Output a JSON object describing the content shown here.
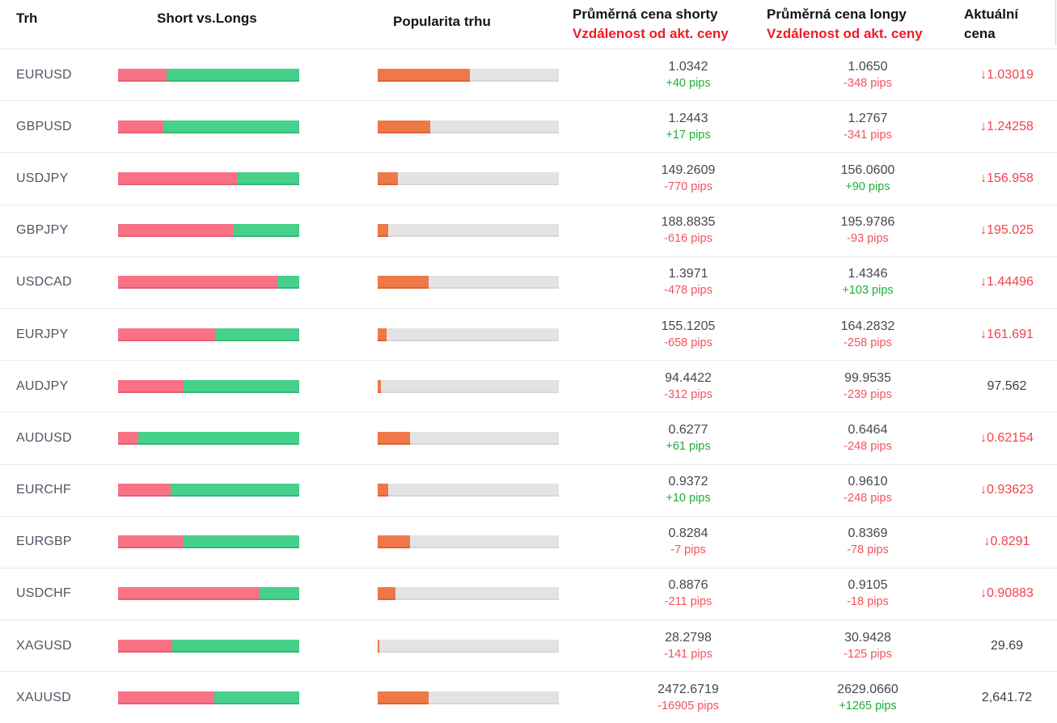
{
  "header": {
    "market": "Trh",
    "short_vs_longs": "Short vs.Longs",
    "popularity": "Popularita trhu",
    "avg_short_title": "Průměrná cena shorty",
    "avg_short_subtitle": "Vzdálenost od akt. ceny",
    "avg_long_title": "Průměrná cena longy",
    "avg_long_subtitle": "Vzdálenost od akt. ceny",
    "current_line1": "Aktuální",
    "current_line2": "cena"
  },
  "icons": {
    "down_arrow": "↓"
  },
  "colors": {
    "header_red": "#ee1c25",
    "bar_short_red": "#f97184",
    "bar_long_green": "#45d08b",
    "bar_popularity_orange": "#ef7849",
    "bar_track_gray": "#e3e3e3",
    "pips_green": "#1fae37",
    "pips_red": "#f4535d",
    "current_price_red": "#f4414d"
  },
  "rows": [
    {
      "market": "EURUSD",
      "short_pct": 27,
      "popularity_pct": 51,
      "short_price": "1.0342",
      "short_pips": "+40 pips",
      "long_price": "1.0650",
      "long_pips": "-348 pips",
      "current": "1.03019",
      "current_dir": "down"
    },
    {
      "market": "GBPUSD",
      "short_pct": 25,
      "popularity_pct": 29,
      "short_price": "1.2443",
      "short_pips": "+17 pips",
      "long_price": "1.2767",
      "long_pips": "-341 pips",
      "current": "1.24258",
      "current_dir": "down"
    },
    {
      "market": "USDJPY",
      "short_pct": 66,
      "popularity_pct": 11,
      "short_price": "149.2609",
      "short_pips": "-770 pips",
      "long_price": "156.0600",
      "long_pips": "+90 pips",
      "current": "156.958",
      "current_dir": "down"
    },
    {
      "market": "GBPJPY",
      "short_pct": 64,
      "popularity_pct": 6,
      "short_price": "188.8835",
      "short_pips": "-616 pips",
      "long_price": "195.9786",
      "long_pips": "-93 pips",
      "current": "195.025",
      "current_dir": "down"
    },
    {
      "market": "USDCAD",
      "short_pct": 88,
      "popularity_pct": 28,
      "short_price": "1.3971",
      "short_pips": "-478 pips",
      "long_price": "1.4346",
      "long_pips": "+103 pips",
      "current": "1.44496",
      "current_dir": "down"
    },
    {
      "market": "EURJPY",
      "short_pct": 54,
      "popularity_pct": 5,
      "short_price": "155.1205",
      "short_pips": "-658 pips",
      "long_price": "164.2832",
      "long_pips": "-258 pips",
      "current": "161.691",
      "current_dir": "down"
    },
    {
      "market": "AUDJPY",
      "short_pct": 36,
      "popularity_pct": 2,
      "short_price": "94.4422",
      "short_pips": "-312 pips",
      "long_price": "99.9535",
      "long_pips": "-239 pips",
      "current": "97.562",
      "current_dir": "none"
    },
    {
      "market": "AUDUSD",
      "short_pct": 11,
      "popularity_pct": 18,
      "short_price": "0.6277",
      "short_pips": "+61 pips",
      "long_price": "0.6464",
      "long_pips": "-248 pips",
      "current": "0.62154",
      "current_dir": "down"
    },
    {
      "market": "EURCHF",
      "short_pct": 29,
      "popularity_pct": 6,
      "short_price": "0.9372",
      "short_pips": "+10 pips",
      "long_price": "0.9610",
      "long_pips": "-248 pips",
      "current": "0.93623",
      "current_dir": "down"
    },
    {
      "market": "EURGBP",
      "short_pct": 36,
      "popularity_pct": 18,
      "short_price": "0.8284",
      "short_pips": "-7 pips",
      "long_price": "0.8369",
      "long_pips": "-78 pips",
      "current": "0.8291",
      "current_dir": "down"
    },
    {
      "market": "USDCHF",
      "short_pct": 78,
      "popularity_pct": 10,
      "short_price": "0.8876",
      "short_pips": "-211 pips",
      "long_price": "0.9105",
      "long_pips": "-18 pips",
      "current": "0.90883",
      "current_dir": "down"
    },
    {
      "market": "XAGUSD",
      "short_pct": 30,
      "popularity_pct": 1,
      "short_price": "28.2798",
      "short_pips": "-141 pips",
      "long_price": "30.9428",
      "long_pips": "-125 pips",
      "current": "29.69",
      "current_dir": "none"
    },
    {
      "market": "XAUUSD",
      "short_pct": 53,
      "popularity_pct": 28,
      "short_price": "2472.6719",
      "short_pips": "-16905 pips",
      "long_price": "2629.0660",
      "long_pips": "+1265 pips",
      "current": "2,641.72",
      "current_dir": "none"
    }
  ]
}
